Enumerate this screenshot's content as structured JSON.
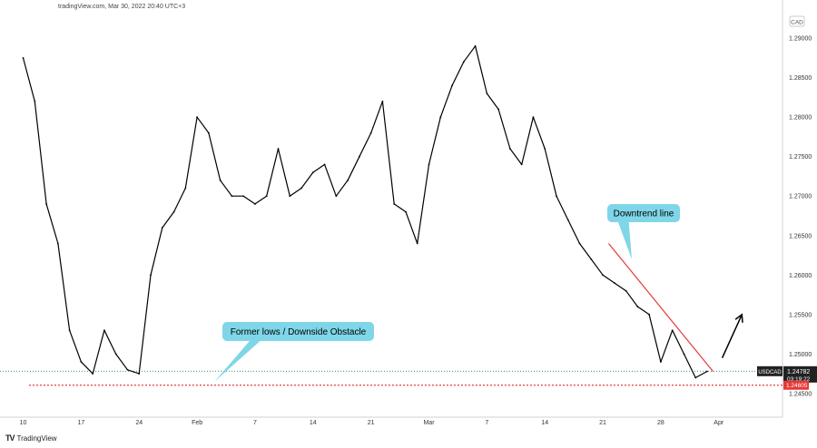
{
  "header": {
    "text": "tradingView.com, Mar 30, 2022 20:40 UTC+3"
  },
  "footer": {
    "logo_text": "TradingView"
  },
  "currency_badge": "CAD",
  "chart_data": {
    "type": "line",
    "title": "",
    "symbol": "USDCAD",
    "last_price": "1.24782",
    "countdown": "03:19:22",
    "support_price": "1.24605",
    "grid": false,
    "ylim": [
      1.242,
      1.293
    ],
    "y_ticks": [
      "1.29000",
      "1.28500",
      "1.28000",
      "1.27500",
      "1.27000",
      "1.26500",
      "1.26000",
      "1.25500",
      "1.25000",
      "1.24500"
    ],
    "y_tick_values": [
      1.29,
      1.285,
      1.28,
      1.275,
      1.27,
      1.265,
      1.26,
      1.255,
      1.25,
      1.245
    ],
    "x_ticks": [
      "10",
      "17",
      "24",
      "Feb",
      "7",
      "14",
      "21",
      "Mar",
      "7",
      "14",
      "21",
      "28",
      "Apr"
    ],
    "x_tick_index": [
      0,
      5,
      10,
      15,
      20,
      25,
      30,
      35,
      40,
      45,
      50,
      55,
      60
    ],
    "x_range": [
      -2,
      65.5
    ],
    "series": [
      {
        "values": [
          1.2875,
          1.282,
          1.269,
          1.264,
          1.253,
          1.249,
          1.2475,
          1.253,
          1.25,
          1.248,
          1.2475,
          1.26,
          1.266,
          1.268,
          1.271,
          1.28,
          1.278,
          1.272,
          1.27,
          1.27,
          1.269,
          1.27,
          1.276,
          1.27,
          1.271,
          1.273,
          1.274,
          1.27,
          1.272,
          1.275,
          1.278,
          1.282,
          1.269,
          1.268,
          1.264,
          1.274,
          1.28,
          1.284,
          1.287,
          1.289,
          1.283,
          1.281,
          1.276,
          1.274,
          1.28,
          1.276,
          1.27,
          1.267,
          1.264,
          1.262,
          1.26,
          1.259,
          1.258,
          1.256,
          1.255,
          1.249,
          1.253,
          1.25,
          1.247,
          1.2478
        ]
      }
    ],
    "support_line": {
      "value": 1.24605,
      "x_from": 0.5,
      "x_to": 65.5,
      "color": "#e53935"
    },
    "last_price_line": {
      "value": 1.24782,
      "color": "#2a7a7a"
    },
    "downtrend_line": {
      "x1": 50.5,
      "y1": 1.264,
      "x2": 59.5,
      "y2": 1.2478,
      "color": "#e53935"
    },
    "arrow": {
      "x1": 60.3,
      "y1": 1.2495,
      "x2": 62.0,
      "y2": 1.255
    },
    "annotations": [
      {
        "text": "Downtrend line",
        "anchor_x": 52.5,
        "anchor_y": 1.262
      },
      {
        "text": "Former lows / Downside Obstacle",
        "anchor_x": 16.5,
        "anchor_y": 1.2465
      }
    ],
    "colors": {
      "line": "#000000",
      "callout": "#7fd6e8",
      "support": "#e53935",
      "trend": "#e53935"
    }
  }
}
